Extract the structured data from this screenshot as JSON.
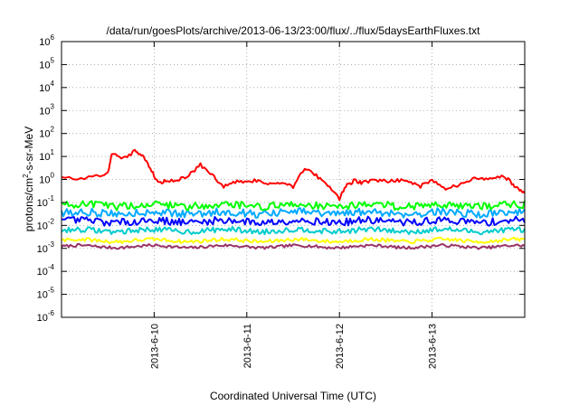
{
  "chart_data": {
    "type": "line",
    "title": "/data/run/goesPlots/archive/2013-06-13/23:00/flux/../flux/5daysEarthFluxes.txt",
    "xlabel": "Coordinated Universal Time (UTC)",
    "ylabel": {
      "base": "protons/cm",
      "sup": "2",
      "rest": "-s-sr-MeV"
    },
    "y_scale": "log",
    "ylim": [
      1e-06,
      1000000.0
    ],
    "y_ticks": [
      {
        "value": 1e-06,
        "base": "10",
        "exp": "-6"
      },
      {
        "value": 1e-05,
        "base": "10",
        "exp": "-5"
      },
      {
        "value": 0.0001,
        "base": "10",
        "exp": "-4"
      },
      {
        "value": 0.001,
        "base": "10",
        "exp": "-3"
      },
      {
        "value": 0.01,
        "base": "10",
        "exp": "-2"
      },
      {
        "value": 0.1,
        "base": "10",
        "exp": "-1"
      },
      {
        "value": 1.0,
        "base": "10",
        "exp": "0"
      },
      {
        "value": 10.0,
        "base": "10",
        "exp": "1"
      },
      {
        "value": 100.0,
        "base": "10",
        "exp": "2"
      },
      {
        "value": 1000.0,
        "base": "10",
        "exp": "3"
      },
      {
        "value": 10000.0,
        "base": "10",
        "exp": "4"
      },
      {
        "value": 100000.0,
        "base": "10",
        "exp": "5"
      },
      {
        "value": 1000000.0,
        "base": "10",
        "exp": "6"
      }
    ],
    "xlim": [
      "2013-06-09T00:00",
      "2013-06-14T00:00"
    ],
    "x_ticks": [
      {
        "value": "2013-06-10T00:00",
        "label": "2013-6-10"
      },
      {
        "value": "2013-06-11T00:00",
        "label": "2013-6-11"
      },
      {
        "value": "2013-06-12T00:00",
        "label": "2013-6-12"
      },
      {
        "value": "2013-06-13T00:00",
        "label": "2013-6-13"
      }
    ],
    "grid": true,
    "series": [
      {
        "color": "#ff0000",
        "x": [
          "2013-06-09T00:00",
          "2013-06-09T06:00",
          "2013-06-09T12:00",
          "2013-06-09T13:00",
          "2013-06-09T16:00",
          "2013-06-09T19:00",
          "2013-06-09T21:00",
          "2013-06-09T23:00",
          "2013-06-10T01:00",
          "2013-06-10T03:00",
          "2013-06-10T06:00",
          "2013-06-10T09:00",
          "2013-06-10T12:00",
          "2013-06-10T15:00",
          "2013-06-10T18:00",
          "2013-06-10T21:00",
          "2013-06-11T00:00",
          "2013-06-11T03:00",
          "2013-06-11T06:00",
          "2013-06-11T09:00",
          "2013-06-11T12:00",
          "2013-06-11T15:00",
          "2013-06-11T18:00",
          "2013-06-11T21:00",
          "2013-06-12T00:00",
          "2013-06-12T02:00",
          "2013-06-12T04:00",
          "2013-06-12T06:00",
          "2013-06-12T09:00",
          "2013-06-12T12:00",
          "2013-06-12T15:00",
          "2013-06-12T18:00",
          "2013-06-12T21:00",
          "2013-06-13T00:00",
          "2013-06-13T03:00",
          "2013-06-13T06:00",
          "2013-06-13T09:00",
          "2013-06-13T12:00",
          "2013-06-13T15:00",
          "2013-06-13T18:00",
          "2013-06-13T20:00",
          "2013-06-13T22:00",
          "2013-06-14T00:00"
        ],
        "y": [
          1.2,
          1.1,
          1.8,
          14,
          8,
          17,
          10,
          3,
          0.7,
          0.9,
          0.9,
          1.5,
          4.5,
          1.5,
          0.5,
          0.8,
          0.8,
          0.9,
          0.6,
          0.8,
          0.5,
          3,
          1.5,
          0.5,
          0.15,
          0.6,
          0.9,
          0.7,
          1.0,
          0.8,
          0.9,
          0.8,
          0.5,
          0.9,
          0.4,
          0.5,
          0.9,
          1.2,
          1.0,
          1.3,
          0.9,
          0.4,
          0.25
        ]
      },
      {
        "color": "#00ff00",
        "level": 0.075,
        "amp": 0.17
      },
      {
        "color": "#00aaff",
        "level": 0.035,
        "amp": 0.17
      },
      {
        "color": "#0000ff",
        "level": 0.015,
        "amp": 0.16
      },
      {
        "color": "#00cccc",
        "level": 0.006,
        "amp": 0.12
      },
      {
        "color": "#ffff00",
        "level": 0.0022,
        "amp": 0.08
      },
      {
        "color": "#993366",
        "level": 0.0012,
        "amp": 0.06
      }
    ]
  }
}
